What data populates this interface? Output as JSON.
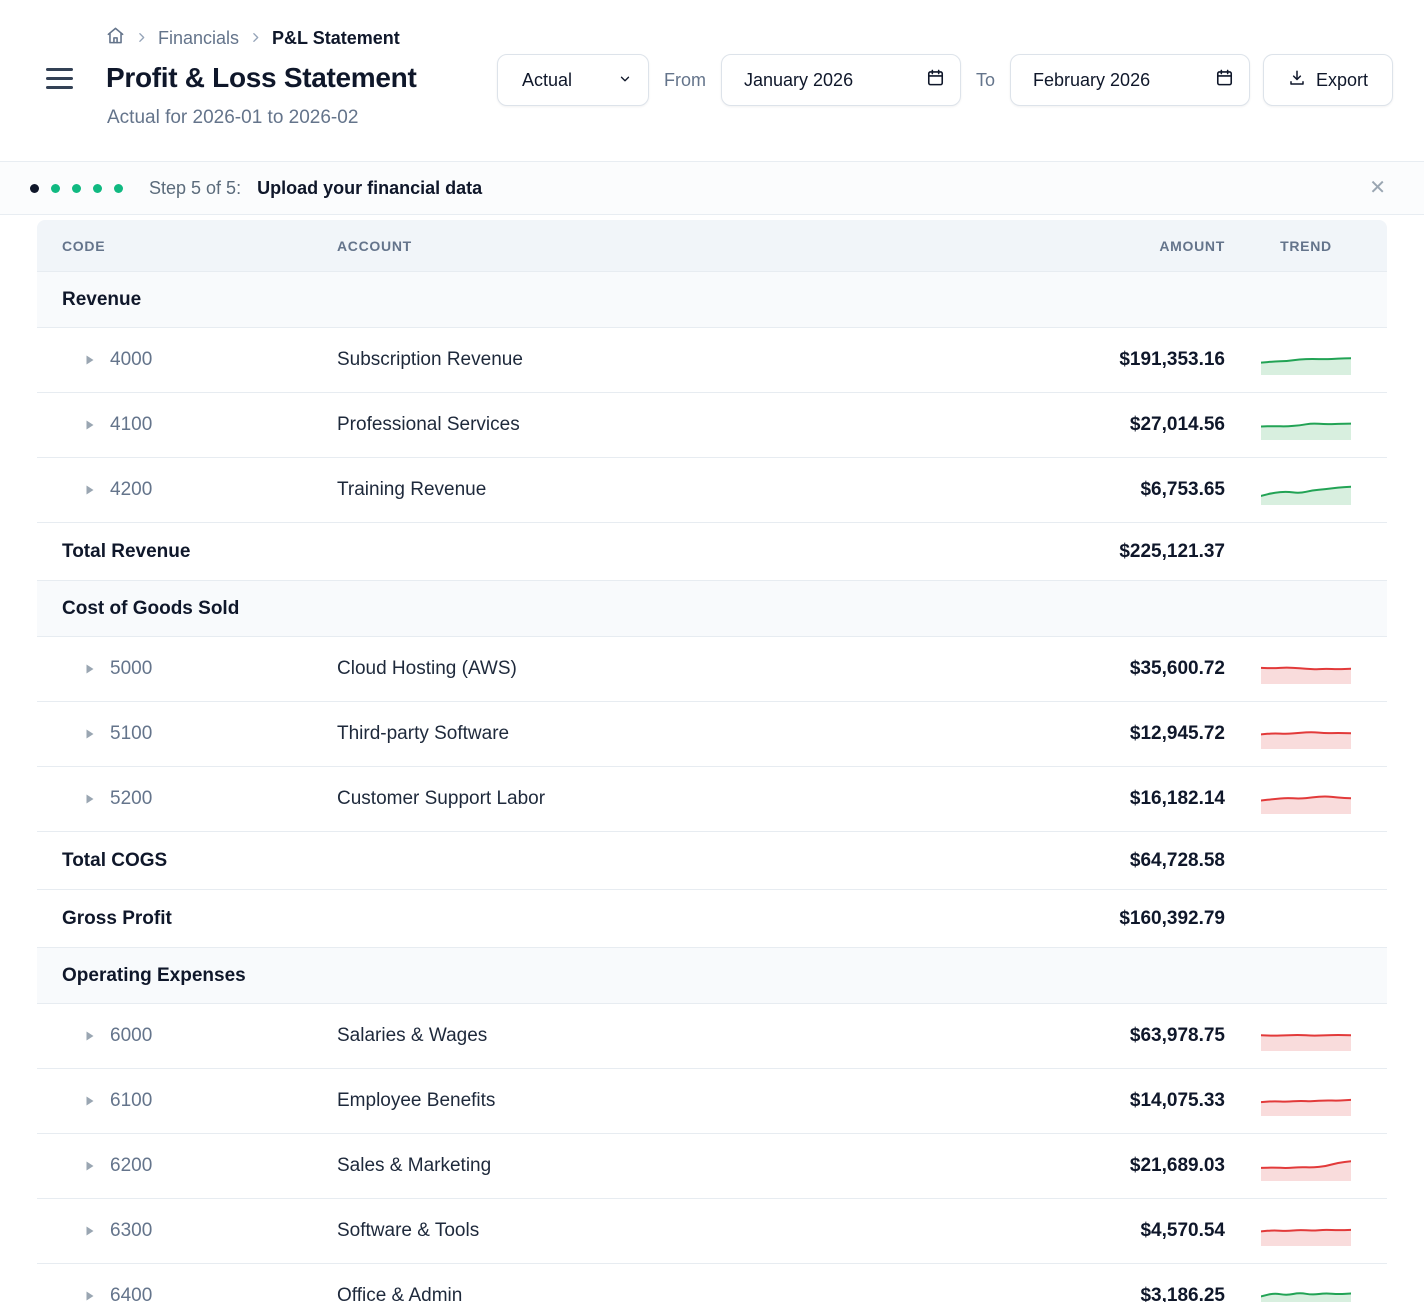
{
  "breadcrumb": {
    "items": [
      "Financials",
      "P&L Statement"
    ]
  },
  "header": {
    "title": "Profit & Loss Statement",
    "subtitle": "Actual for 2026-01 to 2026-02",
    "scenario_value": "Actual",
    "from_label": "From",
    "from_value": "January 2026",
    "to_label": "To",
    "to_value": "February 2026",
    "export_label": "Export"
  },
  "stepper": {
    "label": "Step 5 of 5:",
    "message": "Upload your financial data",
    "close": "✕",
    "dot_colors": [
      "#0f172a",
      "#10b981",
      "#10b981",
      "#10b981",
      "#10b981"
    ]
  },
  "trend_colors": {
    "green": {
      "line": "#22a355",
      "fill": "#d8efdf"
    },
    "red": {
      "line": "#e23a3a",
      "fill": "#f9dcdc"
    }
  },
  "table": {
    "columns": [
      "CODE",
      "ACCOUNT",
      "AMOUNT",
      "TREND"
    ],
    "rows": [
      {
        "type": "section",
        "label": "Revenue"
      },
      {
        "type": "account",
        "code": "4000",
        "account": "Subscription Revenue",
        "amount": "$191,353.16",
        "trend": {
          "color": "green",
          "points": [
            0.45,
            0.5,
            0.52,
            0.6,
            0.62,
            0.6,
            0.63,
            0.65
          ]
        }
      },
      {
        "type": "account",
        "code": "4100",
        "account": "Professional Services",
        "amount": "$27,014.56",
        "trend": {
          "color": "green",
          "points": [
            0.5,
            0.52,
            0.5,
            0.55,
            0.65,
            0.6,
            0.62,
            0.63
          ]
        }
      },
      {
        "type": "account",
        "code": "4200",
        "account": "Training Revenue",
        "amount": "$6,753.65",
        "trend": {
          "color": "green",
          "points": [
            0.3,
            0.45,
            0.5,
            0.42,
            0.55,
            0.6,
            0.68,
            0.72
          ]
        }
      },
      {
        "type": "total",
        "label": "Total Revenue",
        "amount": "$225,121.37"
      },
      {
        "type": "section",
        "label": "Cost of Goods Sold"
      },
      {
        "type": "account",
        "code": "5000",
        "account": "Cloud Hosting (AWS)",
        "amount": "$35,600.72",
        "trend": {
          "color": "red",
          "points": [
            0.62,
            0.6,
            0.64,
            0.6,
            0.55,
            0.58,
            0.56,
            0.58
          ]
        }
      },
      {
        "type": "account",
        "code": "5100",
        "account": "Third-party Software",
        "amount": "$12,945.72",
        "trend": {
          "color": "red",
          "points": [
            0.55,
            0.6,
            0.57,
            0.62,
            0.66,
            0.6,
            0.62,
            0.6
          ]
        }
      },
      {
        "type": "account",
        "code": "5200",
        "account": "Customer Support Labor",
        "amount": "$16,182.14",
        "trend": {
          "color": "red",
          "points": [
            0.5,
            0.56,
            0.62,
            0.58,
            0.64,
            0.7,
            0.63,
            0.6
          ]
        }
      },
      {
        "type": "total",
        "label": "Total COGS",
        "amount": "$64,728.58"
      },
      {
        "type": "total",
        "label": "Gross Profit",
        "amount": "$160,392.79"
      },
      {
        "type": "section",
        "label": "Operating Expenses"
      },
      {
        "type": "account",
        "code": "6000",
        "account": "Salaries & Wages",
        "amount": "$63,978.75",
        "trend": {
          "color": "red",
          "points": [
            0.6,
            0.58,
            0.6,
            0.62,
            0.58,
            0.6,
            0.62,
            0.6
          ]
        }
      },
      {
        "type": "account",
        "code": "6100",
        "account": "Employee Benefits",
        "amount": "$14,075.33",
        "trend": {
          "color": "red",
          "points": [
            0.52,
            0.56,
            0.53,
            0.58,
            0.55,
            0.6,
            0.58,
            0.62
          ]
        }
      },
      {
        "type": "account",
        "code": "6200",
        "account": "Sales & Marketing",
        "amount": "$21,689.03",
        "trend": {
          "color": "red",
          "points": [
            0.48,
            0.5,
            0.47,
            0.52,
            0.5,
            0.55,
            0.72,
            0.78
          ]
        }
      },
      {
        "type": "account",
        "code": "6300",
        "account": "Software & Tools",
        "amount": "$4,570.54",
        "trend": {
          "color": "red",
          "points": [
            0.55,
            0.6,
            0.56,
            0.62,
            0.58,
            0.63,
            0.6,
            0.62
          ]
        }
      },
      {
        "type": "account",
        "code": "6400",
        "account": "Office & Admin",
        "amount": "$3,186.25",
        "trend": {
          "color": "green",
          "points": [
            0.55,
            0.7,
            0.6,
            0.72,
            0.62,
            0.7,
            0.65,
            0.68
          ]
        }
      }
    ]
  }
}
